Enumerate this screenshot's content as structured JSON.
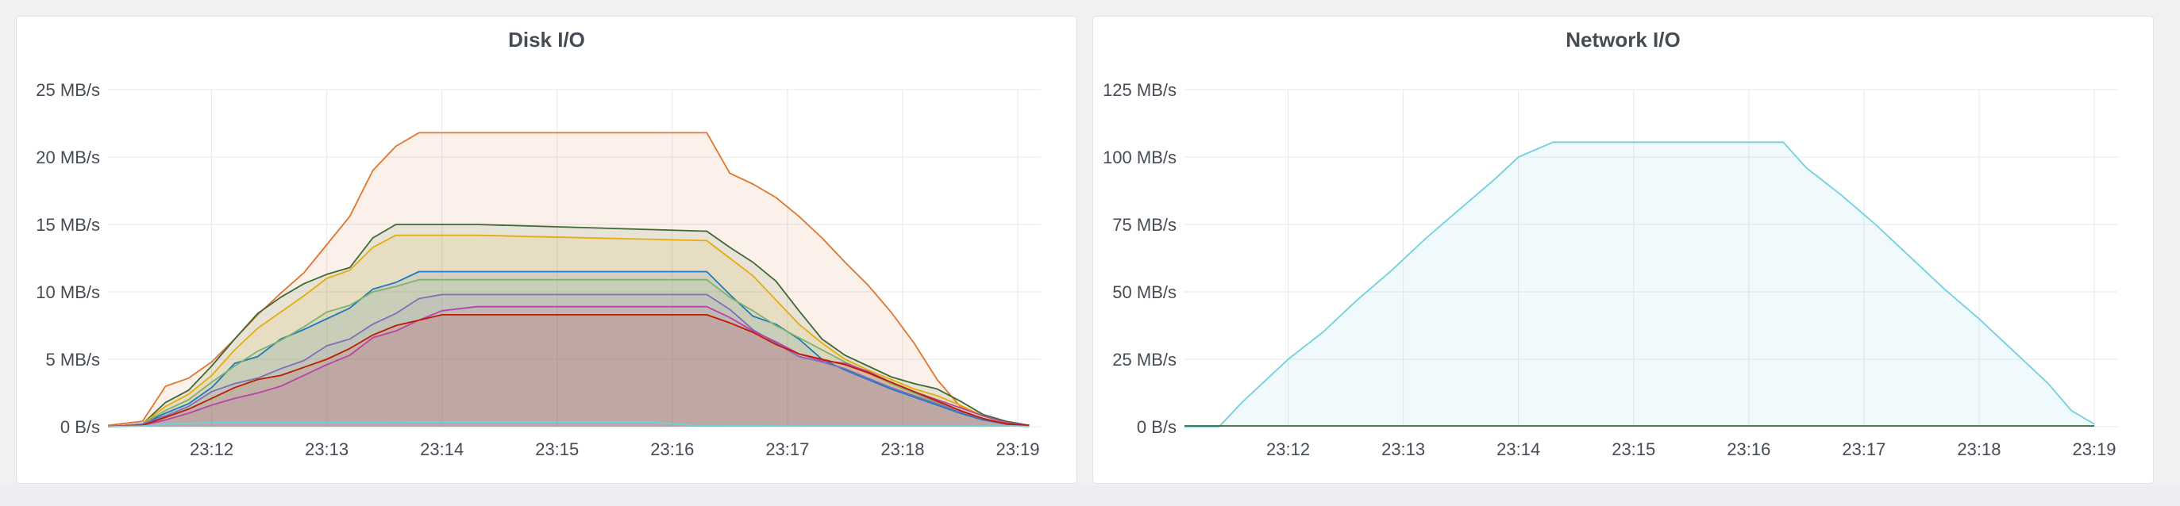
{
  "chart_data": [
    {
      "type": "area",
      "title": "Disk I/O",
      "xlabel": "",
      "ylabel": "",
      "x_ticks": [
        "23:12",
        "23:13",
        "23:14",
        "23:15",
        "23:16",
        "23:17",
        "23:18",
        "23:19"
      ],
      "x_range_min": [
        11.1,
        19.2
      ],
      "y_ticks": [
        {
          "value": 0,
          "label": "0 B/s"
        },
        {
          "value": 5,
          "label": "5 MB/s"
        },
        {
          "value": 10,
          "label": "10 MB/s"
        },
        {
          "value": 15,
          "label": "15 MB/s"
        },
        {
          "value": 20,
          "label": "20 MB/s"
        },
        {
          "value": 25,
          "label": "25 MB/s"
        }
      ],
      "ylim": [
        0,
        25
      ],
      "grid": true,
      "legend": "none",
      "series": [
        {
          "color": "#e0752d",
          "x": [
            11.1,
            11.4,
            11.6,
            11.8,
            12.0,
            12.2,
            12.4,
            12.6,
            12.8,
            13.0,
            13.2,
            13.4,
            13.6,
            13.8,
            14.0,
            14.3,
            16.3,
            16.5,
            16.7,
            16.9,
            17.1,
            17.3,
            17.5,
            17.7,
            17.9,
            18.1,
            18.3,
            18.5,
            18.7,
            18.9,
            19.1
          ],
          "y": [
            0.1,
            0.4,
            3.0,
            3.6,
            4.8,
            6.5,
            8.3,
            9.9,
            11.4,
            13.5,
            15.6,
            19.0,
            20.8,
            21.8,
            21.8,
            21.8,
            21.8,
            18.8,
            18.0,
            17.0,
            15.6,
            14.0,
            12.2,
            10.5,
            8.5,
            6.2,
            3.5,
            1.5,
            0.8,
            0.3,
            0.1
          ]
        },
        {
          "color": "#3f6833",
          "x": [
            11.1,
            11.4,
            11.6,
            11.8,
            12.0,
            12.2,
            12.4,
            12.6,
            12.8,
            13.0,
            13.2,
            13.4,
            13.6,
            13.8,
            14.0,
            14.3,
            16.3,
            16.5,
            16.7,
            16.9,
            17.1,
            17.3,
            17.5,
            17.7,
            17.9,
            18.1,
            18.3,
            18.5,
            18.7,
            18.9,
            19.1
          ],
          "y": [
            0.0,
            0.2,
            1.8,
            2.7,
            4.5,
            6.5,
            8.4,
            9.6,
            10.6,
            11.3,
            11.8,
            14.0,
            15.0,
            15.0,
            15.0,
            15.0,
            14.5,
            13.3,
            12.2,
            10.8,
            8.6,
            6.5,
            5.3,
            4.5,
            3.7,
            3.2,
            2.8,
            1.9,
            0.9,
            0.4,
            0.1
          ]
        },
        {
          "color": "#e5ac0e",
          "x": [
            11.1,
            11.4,
            11.6,
            11.8,
            12.0,
            12.2,
            12.4,
            12.6,
            12.8,
            13.0,
            13.2,
            13.4,
            13.6,
            13.8,
            14.0,
            14.3,
            16.3,
            16.5,
            16.7,
            16.9,
            17.1,
            17.3,
            17.5,
            17.7,
            17.9,
            18.1,
            18.3,
            18.5,
            18.7,
            18.9,
            19.1
          ],
          "y": [
            0.0,
            0.2,
            1.5,
            2.4,
            3.8,
            5.7,
            7.3,
            8.5,
            9.7,
            11.0,
            11.6,
            13.3,
            14.2,
            14.2,
            14.2,
            14.2,
            13.8,
            12.5,
            11.2,
            9.4,
            7.6,
            6.2,
            5.0,
            4.2,
            3.5,
            2.8,
            2.3,
            1.6,
            0.8,
            0.3,
            0.1
          ]
        },
        {
          "color": "#1f78c1",
          "x": [
            11.1,
            11.4,
            11.6,
            11.8,
            12.0,
            12.2,
            12.4,
            12.6,
            12.8,
            13.0,
            13.2,
            13.4,
            13.6,
            13.8,
            14.0,
            14.3,
            16.3,
            16.5,
            16.7,
            16.9,
            17.1,
            17.3,
            17.5,
            17.7,
            17.9,
            18.1,
            18.3,
            18.5,
            18.7,
            18.9,
            19.1
          ],
          "y": [
            0.0,
            0.2,
            1.0,
            1.7,
            2.9,
            4.7,
            5.2,
            6.5,
            7.2,
            8.0,
            8.8,
            10.2,
            10.7,
            11.5,
            11.5,
            11.5,
            11.5,
            9.8,
            8.2,
            7.6,
            6.5,
            5.0,
            4.2,
            3.5,
            2.8,
            2.2,
            1.6,
            1.0,
            0.5,
            0.2,
            0.1
          ]
        },
        {
          "color": "#7eb26d",
          "x": [
            11.1,
            11.4,
            11.6,
            11.8,
            12.0,
            12.2,
            12.4,
            12.6,
            12.8,
            13.0,
            13.2,
            13.4,
            13.6,
            13.8,
            14.0,
            14.3,
            16.3,
            16.5,
            16.7,
            16.9,
            17.1,
            17.3,
            17.5,
            17.7,
            17.9,
            18.1,
            18.3,
            18.5,
            18.7,
            18.9,
            19.1
          ],
          "y": [
            0.0,
            0.2,
            1.2,
            2.0,
            3.3,
            4.5,
            5.6,
            6.4,
            7.4,
            8.5,
            9.0,
            10.0,
            10.4,
            10.9,
            10.9,
            10.9,
            10.9,
            9.6,
            8.6,
            7.5,
            6.6,
            5.7,
            4.8,
            4.0,
            3.2,
            2.5,
            1.8,
            1.2,
            0.6,
            0.2,
            0.1
          ]
        },
        {
          "color": "#806eb7",
          "x": [
            11.1,
            11.4,
            11.6,
            11.8,
            12.0,
            12.2,
            12.4,
            12.6,
            12.8,
            13.0,
            13.2,
            13.4,
            13.6,
            13.8,
            14.0,
            14.3,
            16.3,
            16.5,
            16.7,
            16.9,
            17.1,
            17.3,
            17.5,
            17.7,
            17.9,
            18.1,
            18.3,
            18.5,
            18.7,
            18.9,
            19.1
          ],
          "y": [
            0.0,
            0.2,
            0.8,
            1.5,
            2.6,
            3.2,
            3.6,
            4.3,
            4.9,
            6.0,
            6.5,
            7.6,
            8.4,
            9.5,
            9.8,
            9.8,
            9.8,
            8.7,
            7.2,
            6.2,
            5.2,
            4.8,
            4.3,
            3.6,
            2.9,
            2.3,
            1.7,
            1.1,
            0.6,
            0.2,
            0.1
          ]
        },
        {
          "color": "#ba43a9",
          "x": [
            11.1,
            11.4,
            11.6,
            11.8,
            12.0,
            12.2,
            12.4,
            12.6,
            12.8,
            13.0,
            13.2,
            13.4,
            13.6,
            13.8,
            14.0,
            14.3,
            16.3,
            16.5,
            16.7,
            16.9,
            17.1,
            17.3,
            17.5,
            17.7,
            17.9,
            18.1,
            18.3,
            18.5,
            18.7,
            18.9,
            19.1
          ],
          "y": [
            0.0,
            0.1,
            0.5,
            1.0,
            1.6,
            2.1,
            2.5,
            3.0,
            3.8,
            4.6,
            5.3,
            6.6,
            7.1,
            7.9,
            8.6,
            8.9,
            8.9,
            8.1,
            7.1,
            6.3,
            5.4,
            4.9,
            4.7,
            4.1,
            3.3,
            2.6,
            2.0,
            1.4,
            0.8,
            0.3,
            0.1
          ]
        },
        {
          "color": "#bf1b00",
          "x": [
            11.1,
            11.4,
            11.6,
            11.8,
            12.0,
            12.2,
            12.4,
            12.6,
            12.8,
            13.0,
            13.2,
            13.4,
            13.6,
            13.8,
            14.0,
            14.3,
            16.3,
            16.5,
            16.7,
            16.9,
            17.1,
            17.3,
            17.5,
            17.7,
            17.9,
            18.1,
            18.3,
            18.5,
            18.7,
            18.9,
            19.1
          ],
          "y": [
            0.0,
            0.1,
            0.7,
            1.3,
            2.1,
            2.9,
            3.5,
            3.8,
            4.4,
            5.0,
            5.8,
            6.8,
            7.5,
            7.9,
            8.3,
            8.3,
            8.3,
            7.7,
            7.0,
            6.1,
            5.4,
            5.0,
            4.6,
            4.0,
            3.3,
            2.6,
            1.9,
            1.2,
            0.6,
            0.2,
            0.1
          ]
        },
        {
          "color": "#6ed0e0",
          "x": [
            11.1,
            11.4,
            11.6,
            12.0,
            13.0,
            14.0,
            15.0,
            15.8,
            16.2,
            17.0,
            18.0,
            19.0,
            19.1
          ],
          "y": [
            0.0,
            0.05,
            0.2,
            0.3,
            0.3,
            0.35,
            0.35,
            0.35,
            0.1,
            0.05,
            0.05,
            0.05,
            0.0
          ]
        }
      ]
    },
    {
      "type": "area",
      "title": "Network I/O",
      "xlabel": "",
      "ylabel": "",
      "x_ticks": [
        "23:12",
        "23:13",
        "23:14",
        "23:15",
        "23:16",
        "23:17",
        "23:18",
        "23:19"
      ],
      "x_range_min": [
        11.1,
        19.2
      ],
      "y_ticks": [
        {
          "value": 0,
          "label": "0 B/s"
        },
        {
          "value": 25,
          "label": "25 MB/s"
        },
        {
          "value": 50,
          "label": "50 MB/s"
        },
        {
          "value": 75,
          "label": "75 MB/s"
        },
        {
          "value": 100,
          "label": "100 MB/s"
        },
        {
          "value": 125,
          "label": "125 MB/s"
        }
      ],
      "ylim": [
        0,
        125
      ],
      "grid": true,
      "legend": "none",
      "series": [
        {
          "color": "#6ed0e0",
          "x": [
            11.1,
            11.4,
            11.6,
            11.8,
            12.0,
            12.3,
            12.6,
            12.9,
            13.2,
            13.5,
            13.8,
            14.0,
            14.3,
            16.3,
            16.5,
            16.8,
            17.1,
            17.4,
            17.7,
            18.0,
            18.3,
            18.6,
            18.8,
            19.0
          ],
          "y": [
            0,
            0,
            9,
            17,
            25,
            35,
            47,
            58,
            70,
            81,
            92,
            100,
            105.5,
            105.5,
            96,
            86,
            75,
            63,
            51,
            40,
            28,
            16,
            6,
            1
          ]
        },
        {
          "color": "#3f6833",
          "x": [
            11.1,
            19.0
          ],
          "y": [
            0.3,
            0.3
          ]
        }
      ]
    }
  ]
}
